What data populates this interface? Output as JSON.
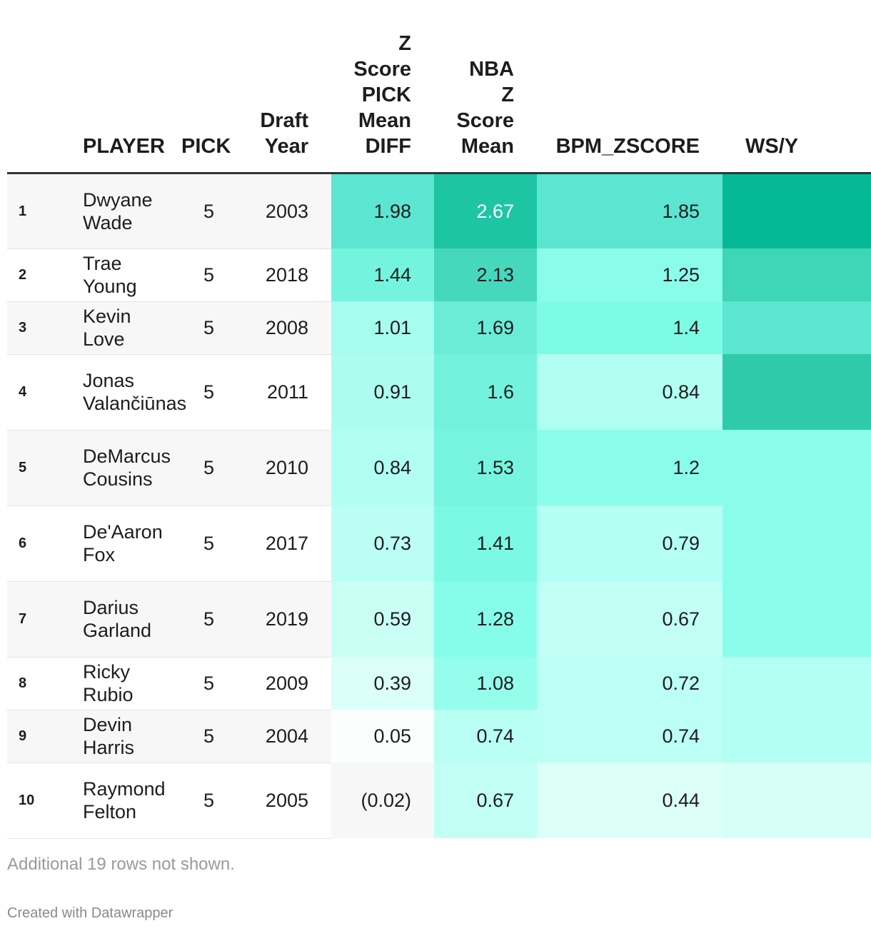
{
  "chart_data": {
    "type": "table",
    "columns": [
      "",
      "PLAYER",
      "PICK",
      "Draft Year",
      "Z Score PICK Mean DIFF",
      "NBA Z Score Mean",
      "BPM_ZSCORE",
      "WS/Y"
    ],
    "header_lines": {
      "player": [
        "PLAYER"
      ],
      "pick": [
        "PICK"
      ],
      "year": [
        "Draft",
        "Year"
      ],
      "zdiff": [
        "Z",
        "Score",
        "PICK",
        "Mean",
        "DIFF"
      ],
      "nba": [
        "NBA",
        "Z",
        "Score",
        "Mean"
      ],
      "bpm": [
        "BPM_ZSCORE"
      ],
      "ws": [
        "WS/Y"
      ]
    },
    "rows": [
      {
        "rank": "1",
        "player": [
          "Dwyane",
          "Wade"
        ],
        "pick": "5",
        "year": "2003",
        "zdiff": "1.98",
        "nba": "2.67",
        "bpm": "1.85",
        "colors": {
          "zdiff": "#5ce5d0",
          "nba": "#1ec5a4",
          "bpm": "#5ce5d0",
          "ws": "#05b896"
        }
      },
      {
        "rank": "2",
        "player": [
          "Trae Young"
        ],
        "pick": "5",
        "year": "2018",
        "zdiff": "1.44",
        "nba": "2.13",
        "bpm": "1.25",
        "colors": {
          "zdiff": "#74f4df",
          "nba": "#45d8bd",
          "bpm": "#8afdea",
          "ws": "#3fd5b7"
        }
      },
      {
        "rank": "3",
        "player": [
          "Kevin Love"
        ],
        "pick": "5",
        "year": "2008",
        "zdiff": "1.01",
        "nba": "1.69",
        "bpm": "1.4",
        "colors": {
          "zdiff": "#a6fcef",
          "nba": "#6aecd7",
          "bpm": "#7dfbe5",
          "ws": "#5ce5d0"
        }
      },
      {
        "rank": "4",
        "player": [
          "Jonas",
          "Valančiūnas"
        ],
        "pick": "5",
        "year": "2011",
        "zdiff": "0.91",
        "nba": "1.6",
        "bpm": "0.84",
        "colors": {
          "zdiff": "#acfdf0",
          "nba": "#72f2dd",
          "bpm": "#b1fff2",
          "ws": "#2fcaaa"
        }
      },
      {
        "rank": "5",
        "player": [
          "DeMarcus",
          "Cousins"
        ],
        "pick": "5",
        "year": "2010",
        "zdiff": "0.84",
        "nba": "1.53",
        "bpm": "1.2",
        "colors": {
          "zdiff": "#b1fff2",
          "nba": "#76f4df",
          "bpm": "#8afdea",
          "ws": "#8afdea"
        }
      },
      {
        "rank": "6",
        "player": [
          "De'Aaron",
          "Fox"
        ],
        "pick": "5",
        "year": "2017",
        "zdiff": "0.73",
        "nba": "1.41",
        "bpm": "0.79",
        "colors": {
          "zdiff": "#bbfff4",
          "nba": "#7cf9e4",
          "bpm": "#b4fff3",
          "ws": "#8afdea"
        }
      },
      {
        "rank": "7",
        "player": [
          "Darius",
          "Garland"
        ],
        "pick": "5",
        "year": "2019",
        "zdiff": "0.59",
        "nba": "1.28",
        "bpm": "0.67",
        "colors": {
          "zdiff": "#cafff6",
          "nba": "#86fdea",
          "bpm": "#c2fff5",
          "ws": "#8afdea"
        }
      },
      {
        "rank": "8",
        "player": [
          "Ricky Rubio"
        ],
        "pick": "5",
        "year": "2009",
        "zdiff": "0.39",
        "nba": "1.08",
        "bpm": "0.72",
        "colors": {
          "zdiff": "#dbfff9",
          "nba": "#95fdeb",
          "bpm": "#bcfff4",
          "ws": "#b4fff3"
        }
      },
      {
        "rank": "9",
        "player": [
          "Devin Harris"
        ],
        "pick": "5",
        "year": "2004",
        "zdiff": "0.05",
        "nba": "0.74",
        "bpm": "0.74",
        "colors": {
          "zdiff": "#fafffe",
          "nba": "#b9fff3",
          "bpm": "#bcfff4",
          "ws": "#b4fff3"
        }
      },
      {
        "rank": "10",
        "player": [
          "Raymond",
          "Felton"
        ],
        "pick": "5",
        "year": "2005",
        "zdiff": "(0.02)",
        "nba": "0.67",
        "bpm": "0.44",
        "colors": {
          "zdiff": "#f7f7f7",
          "nba": "#c2fff5",
          "bpm": "#dcfff8",
          "ws": "#d6fff7"
        }
      }
    ]
  },
  "footer": {
    "note": "Additional 19 rows not shown.",
    "credit": "Created with Datawrapper"
  }
}
